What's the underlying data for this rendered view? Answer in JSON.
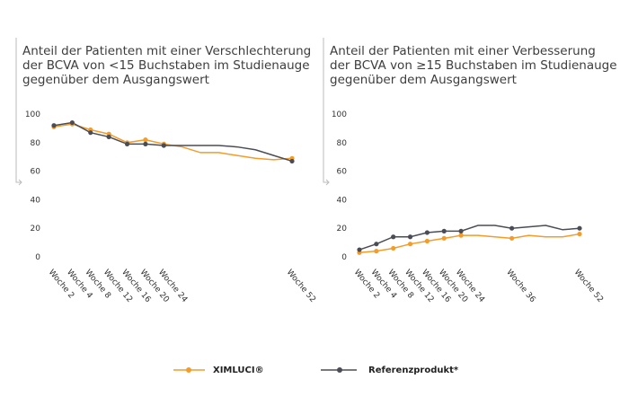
{
  "chart_data": [
    {
      "type": "line",
      "title": [
        "Anteil der Patienten mit einer Verschlechterung",
        "der BCVA von <15 Buchstaben im Studienauge",
        "gegenüber dem Ausgangswert"
      ],
      "categories": [
        "Woche 2",
        "Woche 4",
        "Woche 8",
        "Woche 12",
        "Woche 16",
        "Woche 20",
        "Woche 24",
        null,
        null,
        null,
        null,
        null,
        null,
        "Woche 52"
      ],
      "series": [
        {
          "name": "XIMLUCI®",
          "color": "#f39c2a",
          "values": [
            91,
            93,
            89,
            86,
            80,
            82,
            79,
            77,
            73,
            73,
            71,
            69,
            68,
            69
          ]
        },
        {
          "name": "Referenzprodukt*",
          "color": "#4a4d55",
          "values": [
            92,
            94,
            87,
            84,
            79,
            79,
            78,
            78,
            78,
            78,
            77,
            75,
            71,
            67
          ]
        }
      ],
      "ylim": [
        0,
        100
      ],
      "yticks": [
        0,
        20,
        40,
        60,
        80,
        100
      ],
      "grid": false
    },
    {
      "type": "line",
      "title": [
        "Anteil der Patienten mit einer Verbesserung",
        "der BCVA von ≥15 Buchstaben im Studienauge",
        "gegenüber dem Ausgangswert"
      ],
      "categories": [
        "Woche 2",
        "Woche 4",
        "Woche 8",
        "Woche 12",
        "Woche 16",
        "Woche 20",
        "Woche 24",
        null,
        null,
        "Woche 36",
        null,
        null,
        null,
        "Woche 52"
      ],
      "series": [
        {
          "name": "XIMLUCI®",
          "color": "#f39c2a",
          "values": [
            3,
            4,
            6,
            9,
            11,
            13,
            15,
            15,
            14,
            13,
            15,
            14,
            14,
            16
          ]
        },
        {
          "name": "Referenzprodukt*",
          "color": "#4a4d55",
          "values": [
            5,
            9,
            14,
            14,
            17,
            18,
            18,
            22,
            22,
            20,
            21,
            22,
            19,
            20
          ]
        }
      ],
      "ylim": [
        0,
        100
      ],
      "yticks": [
        0,
        20,
        40,
        60,
        80,
        100
      ],
      "grid": false
    }
  ]
}
